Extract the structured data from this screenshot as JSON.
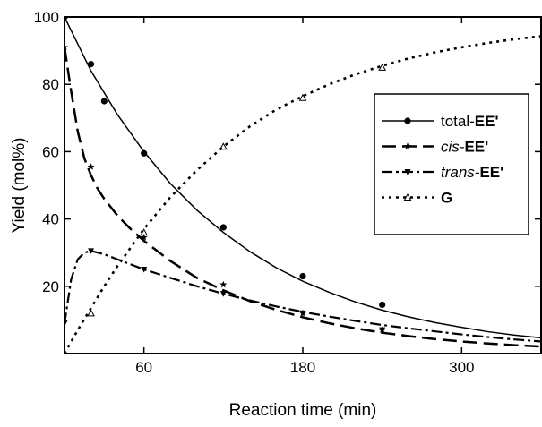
{
  "chart_data": {
    "type": "line",
    "title": "",
    "xlabel": "Reaction time (min)",
    "ylabel": "Yield (mol%)",
    "xlim": [
      0,
      360
    ],
    "ylim": [
      0,
      100
    ],
    "xticks": [
      60,
      180,
      300
    ],
    "yticks": [
      20,
      40,
      60,
      80,
      100
    ],
    "grid": false,
    "legend_position": "upper right",
    "series": [
      {
        "name": "total-EE'",
        "label_parts": [
          {
            "text": "total-",
            "style": "normal"
          },
          {
            "text": "EE'",
            "style": "bold"
          }
        ],
        "line_style": "solid",
        "marker": "circle",
        "points": {
          "x": [
            0,
            20,
            40,
            60,
            80,
            100,
            120,
            140,
            160,
            180,
            200,
            220,
            240,
            260,
            280,
            300,
            320,
            340,
            360
          ],
          "y": [
            100,
            84,
            71,
            60,
            50.5,
            42.6,
            36.0,
            30.3,
            25.5,
            21.5,
            18.2,
            15.3,
            12.9,
            10.9,
            9.2,
            7.8,
            6.5,
            5.5,
            4.7
          ]
        },
        "markers": {
          "x": [
            0,
            20,
            30,
            60,
            120,
            180,
            240
          ],
          "y": [
            100,
            86,
            75,
            59.5,
            37.5,
            23,
            14.5
          ]
        }
      },
      {
        "name": "cis-EE'",
        "label_parts": [
          {
            "text": "cis-",
            "style": "italic"
          },
          {
            "text": "EE'",
            "style": "bold"
          }
        ],
        "line_style": "long-dash",
        "marker": "star",
        "points": {
          "x": [
            0,
            5,
            10,
            15,
            20,
            25,
            30,
            40,
            50,
            60,
            80,
            100,
            120,
            140,
            160,
            180,
            200,
            220,
            240,
            260,
            280,
            300,
            320,
            340,
            360
          ],
          "y": [
            91,
            78,
            66,
            58,
            53,
            49,
            46,
            41,
            37,
            33.5,
            27.5,
            22.5,
            18.8,
            15.6,
            13.0,
            10.8,
            9.0,
            7.5,
            6.2,
            5.2,
            4.3,
            3.6,
            3.0,
            2.5,
            2.1
          ]
        },
        "markers": {
          "x": [
            0,
            20,
            60,
            120,
            180,
            240
          ],
          "y": [
            91,
            55.5,
            34.5,
            20.5,
            12,
            7
          ]
        }
      },
      {
        "name": "trans-EE'",
        "label_parts": [
          {
            "text": "trans-",
            "style": "italic"
          },
          {
            "text": "EE'",
            "style": "bold"
          }
        ],
        "line_style": "dash-dot",
        "marker": "triangle-down",
        "points": {
          "x": [
            0,
            5,
            10,
            15,
            20,
            30,
            40,
            60,
            80,
            100,
            120,
            140,
            160,
            180,
            200,
            220,
            240,
            260,
            280,
            300,
            320,
            340,
            360
          ],
          "y": [
            9,
            22,
            28,
            30,
            30.5,
            29.5,
            28,
            25,
            22.5,
            20,
            17.8,
            15.8,
            14.0,
            12.4,
            11.0,
            9.7,
            8.5,
            7.5,
            6.6,
            5.7,
            4.9,
            4.2,
            3.6
          ]
        },
        "markers": {
          "x": [
            0,
            20,
            60,
            120,
            180,
            240
          ],
          "y": [
            9,
            30.5,
            25,
            17.8,
            12,
            7
          ]
        }
      },
      {
        "name": "G",
        "label_parts": [
          {
            "text": "G",
            "style": "bold"
          }
        ],
        "line_style": "dotted",
        "marker": "triangle-up",
        "points": {
          "x": [
            0,
            10,
            20,
            30,
            40,
            60,
            80,
            100,
            120,
            140,
            160,
            180,
            200,
            220,
            240,
            260,
            280,
            300,
            320,
            340,
            360
          ],
          "y": [
            0,
            7,
            13.5,
            20,
            26,
            37,
            46.5,
            54.5,
            61.5,
            67.5,
            72.5,
            76.5,
            80,
            83,
            85.5,
            87.7,
            89.5,
            91,
            92.3,
            93.4,
            94.3
          ]
        },
        "markers": {
          "x": [
            0,
            20,
            60,
            120,
            180,
            240
          ],
          "y": [
            0,
            12,
            36,
            61.5,
            76,
            85
          ]
        }
      }
    ]
  }
}
